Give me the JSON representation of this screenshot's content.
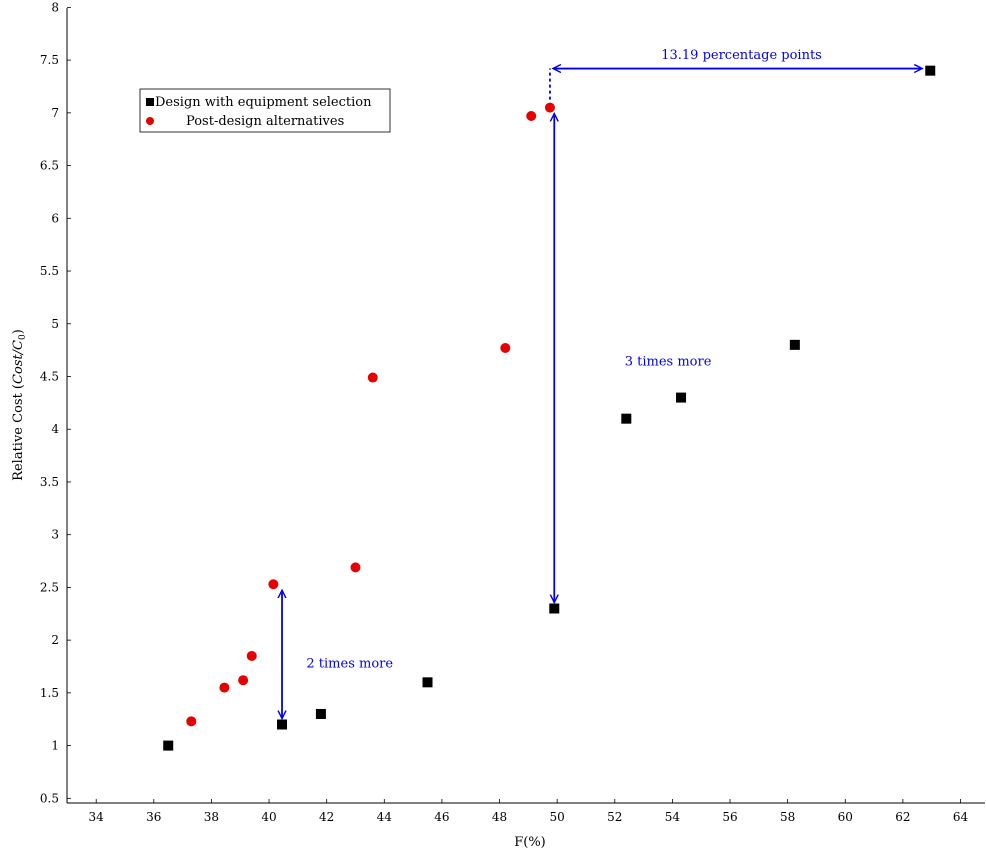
{
  "chart_data": {
    "type": "scatter",
    "xlabel": "F(%)",
    "ylabel": "Relative Cost (Cost/C0)",
    "ylabel_parts": {
      "prefix": "Relative Cost (",
      "math": "Cost/C",
      "sub": "0",
      "suffix": ")"
    },
    "xlim": [
      33,
      65
    ],
    "ylim": [
      0.45,
      8
    ],
    "x_ticks": [
      34,
      36,
      38,
      40,
      42,
      44,
      46,
      48,
      50,
      52,
      54,
      56,
      58,
      60,
      62,
      64
    ],
    "y_ticks": [
      0.5,
      1,
      1.5,
      2,
      2.5,
      3,
      3.5,
      4,
      4.5,
      5,
      5.5,
      6,
      6.5,
      7,
      7.5,
      8
    ],
    "grid": false,
    "legend_position": "top-left",
    "series": [
      {
        "name": "Design with equipment selection",
        "marker": "square",
        "color": "#000000",
        "points": [
          [
            36.5,
            1.0
          ],
          [
            40.45,
            1.2
          ],
          [
            41.8,
            1.3
          ],
          [
            45.5,
            1.6
          ],
          [
            49.9,
            2.3
          ],
          [
            52.4,
            4.1
          ],
          [
            54.3,
            4.3
          ],
          [
            58.25,
            4.8
          ],
          [
            62.95,
            7.4
          ]
        ]
      },
      {
        "name": "Post-design alternatives",
        "marker": "circle",
        "color": "#e60000",
        "points": [
          [
            37.3,
            1.23
          ],
          [
            38.45,
            1.55
          ],
          [
            39.1,
            1.62
          ],
          [
            39.4,
            1.85
          ],
          [
            40.15,
            2.53
          ],
          [
            43.0,
            2.69
          ],
          [
            43.6,
            4.49
          ],
          [
            48.2,
            4.77
          ],
          [
            49.1,
            6.97
          ],
          [
            49.75,
            7.05
          ]
        ]
      }
    ],
    "annotations": [
      {
        "text": "2 times more",
        "arrow": {
          "x": 40.45,
          "y1": 1.2,
          "y2": 2.53
        },
        "label_at": [
          42.8,
          1.78
        ]
      },
      {
        "text": "3 times more",
        "arrow": {
          "x": 49.9,
          "y1": 2.3,
          "y2": 7.05
        },
        "label_at": [
          53.85,
          4.64
        ]
      },
      {
        "text": "13.19 percentage points",
        "arrow": {
          "y": 7.42,
          "x1": 49.75,
          "x2": 62.95
        },
        "label_at": [
          56.4,
          7.55
        ],
        "dashed_from_y": 7.05
      }
    ],
    "annotation_color": "#0000ee"
  }
}
